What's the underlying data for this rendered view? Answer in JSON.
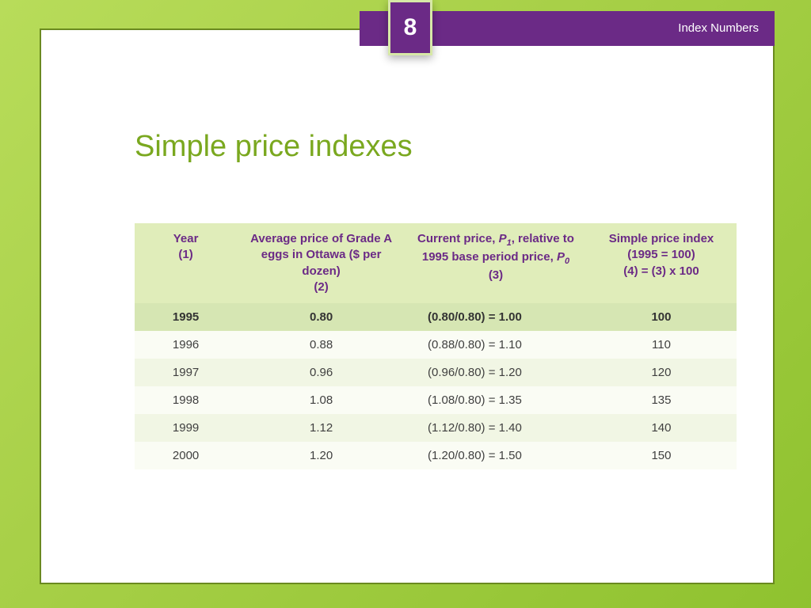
{
  "slide": {
    "background_gradient": {
      "from": "#b8dc5a",
      "mid": "#a8d048",
      "to": "#8fc22f",
      "angle_deg": 135
    },
    "page_border_color": "#6a8a1f",
    "page_background": "#ffffff"
  },
  "banner": {
    "page_number": "8",
    "label": "Index Numbers",
    "bar_color": "#6b2a86",
    "box_border_color": "#d7e8a7",
    "text_color": "#ffffff",
    "page_number_fontsize": 30,
    "label_fontsize": 15
  },
  "title": {
    "text": "Simple price indexes",
    "color": "#7aa81f",
    "fontsize": 38
  },
  "table": {
    "type": "table",
    "header_bg": "#e0edba",
    "header_text_color": "#6b2a86",
    "row_odd_bg": "#f1f6e4",
    "row_even_bg": "#fafcf4",
    "highlight_bg": "#d6e6b3",
    "body_text_color": "#404040",
    "fontsize": 15,
    "column_widths_pct": [
      17,
      28,
      30,
      25
    ],
    "columns": [
      {
        "line1": "Year",
        "line2": "",
        "col_label": "(1)"
      },
      {
        "line1": "Average price of Grade A eggs in Ottawa ($ per dozen)",
        "line2": "",
        "col_label": "(2)"
      },
      {
        "line1_a": "Current price, ",
        "line1_i": "P",
        "line1_sub": "1",
        "line1_b": ",",
        "line2_a": "relative to 1995 base period price, ",
        "line2_i": "P",
        "line2_sub": "0",
        "col_label": "(3)"
      },
      {
        "line1": "Simple price index (1995 = 100)",
        "line2": "",
        "col_label": "(4) = (3) x 100"
      }
    ],
    "rows": [
      {
        "highlight": true,
        "c1": "1995",
        "c2": "0.80",
        "c3": "(0.80/0.80) = 1.00",
        "c4": "100"
      },
      {
        "highlight": false,
        "c1": "1996",
        "c2": "0.88",
        "c3": "(0.88/0.80) = 1.10",
        "c4": "110"
      },
      {
        "highlight": false,
        "c1": "1997",
        "c2": "0.96",
        "c3": "(0.96/0.80) = 1.20",
        "c4": "120"
      },
      {
        "highlight": false,
        "c1": "1998",
        "c2": "1.08",
        "c3": "(1.08/0.80) = 1.35",
        "c4": "135"
      },
      {
        "highlight": false,
        "c1": "1999",
        "c2": "1.12",
        "c3": "(1.12/0.80) = 1.40",
        "c4": "140"
      },
      {
        "highlight": false,
        "c1": "2000",
        "c2": "1.20",
        "c3": "(1.20/0.80) = 1.50",
        "c4": "150"
      }
    ]
  }
}
